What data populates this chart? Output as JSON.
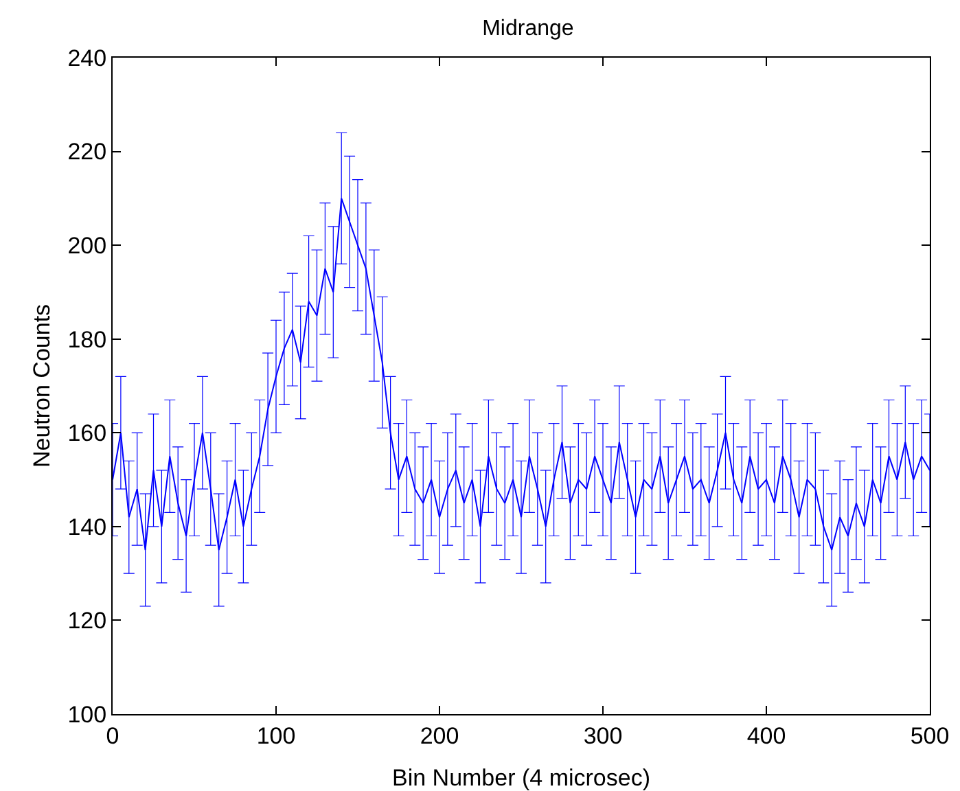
{
  "chart_data": {
    "type": "line",
    "title": "Midrange",
    "xlabel": "Bin Number (4 microsec)",
    "ylabel": "Neutron Counts",
    "x": [
      0,
      5,
      10,
      15,
      20,
      25,
      30,
      35,
      40,
      45,
      50,
      55,
      60,
      65,
      70,
      75,
      80,
      85,
      90,
      95,
      100,
      105,
      110,
      115,
      120,
      125,
      130,
      135,
      140,
      145,
      150,
      155,
      160,
      165,
      170,
      175,
      180,
      185,
      190,
      195,
      200,
      205,
      210,
      215,
      220,
      225,
      230,
      235,
      240,
      245,
      250,
      255,
      260,
      265,
      270,
      275,
      280,
      285,
      290,
      295,
      300,
      305,
      310,
      315,
      320,
      325,
      330,
      335,
      340,
      345,
      350,
      355,
      360,
      365,
      370,
      375,
      380,
      385,
      390,
      395,
      400,
      405,
      410,
      415,
      420,
      425,
      430,
      435,
      440,
      445,
      450,
      455,
      460,
      465,
      470,
      475,
      480,
      485,
      490,
      495,
      500
    ],
    "series": [
      {
        "color": "#0000ff",
        "values": [
          150,
          160,
          142,
          148,
          135,
          152,
          140,
          155,
          145,
          138,
          150,
          160,
          148,
          135,
          142,
          150,
          140,
          148,
          155,
          165,
          172,
          178,
          182,
          175,
          188,
          185,
          195,
          190,
          210,
          205,
          200,
          195,
          185,
          175,
          160,
          150,
          155,
          148,
          145,
          150,
          142,
          148,
          152,
          145,
          150,
          140,
          155,
          148,
          145,
          150,
          142,
          155,
          148,
          140,
          150,
          158,
          145,
          150,
          148,
          155,
          150,
          145,
          158,
          150,
          142,
          150,
          148,
          155,
          145,
          150,
          155,
          148,
          150,
          145,
          152,
          160,
          150,
          145,
          155,
          148,
          150,
          145,
          155,
          150,
          142,
          150,
          148,
          140,
          135,
          142,
          138,
          145,
          140,
          150,
          145,
          155,
          150,
          158,
          150,
          155,
          152
        ],
        "errors": [
          12,
          12,
          12,
          12,
          12,
          12,
          12,
          12,
          12,
          12,
          12,
          12,
          12,
          12,
          12,
          12,
          12,
          12,
          12,
          12,
          12,
          12,
          12,
          12,
          14,
          14,
          14,
          14,
          14,
          14,
          14,
          14,
          14,
          14,
          12,
          12,
          12,
          12,
          12,
          12,
          12,
          12,
          12,
          12,
          12,
          12,
          12,
          12,
          12,
          12,
          12,
          12,
          12,
          12,
          12,
          12,
          12,
          12,
          12,
          12,
          12,
          12,
          12,
          12,
          12,
          12,
          12,
          12,
          12,
          12,
          12,
          12,
          12,
          12,
          12,
          12,
          12,
          12,
          12,
          12,
          12,
          12,
          12,
          12,
          12,
          12,
          12,
          12,
          12,
          12,
          12,
          12,
          12,
          12,
          12,
          12,
          12,
          12,
          12,
          12,
          12
        ]
      }
    ],
    "xlim": [
      0,
      500
    ],
    "xticks": [
      0,
      100,
      200,
      300,
      400,
      500
    ],
    "ylim": [
      100,
      240
    ],
    "yticks": [
      100,
      120,
      140,
      160,
      180,
      200,
      220,
      240
    ],
    "grid": false,
    "marker": "none",
    "line_style": "solid"
  }
}
